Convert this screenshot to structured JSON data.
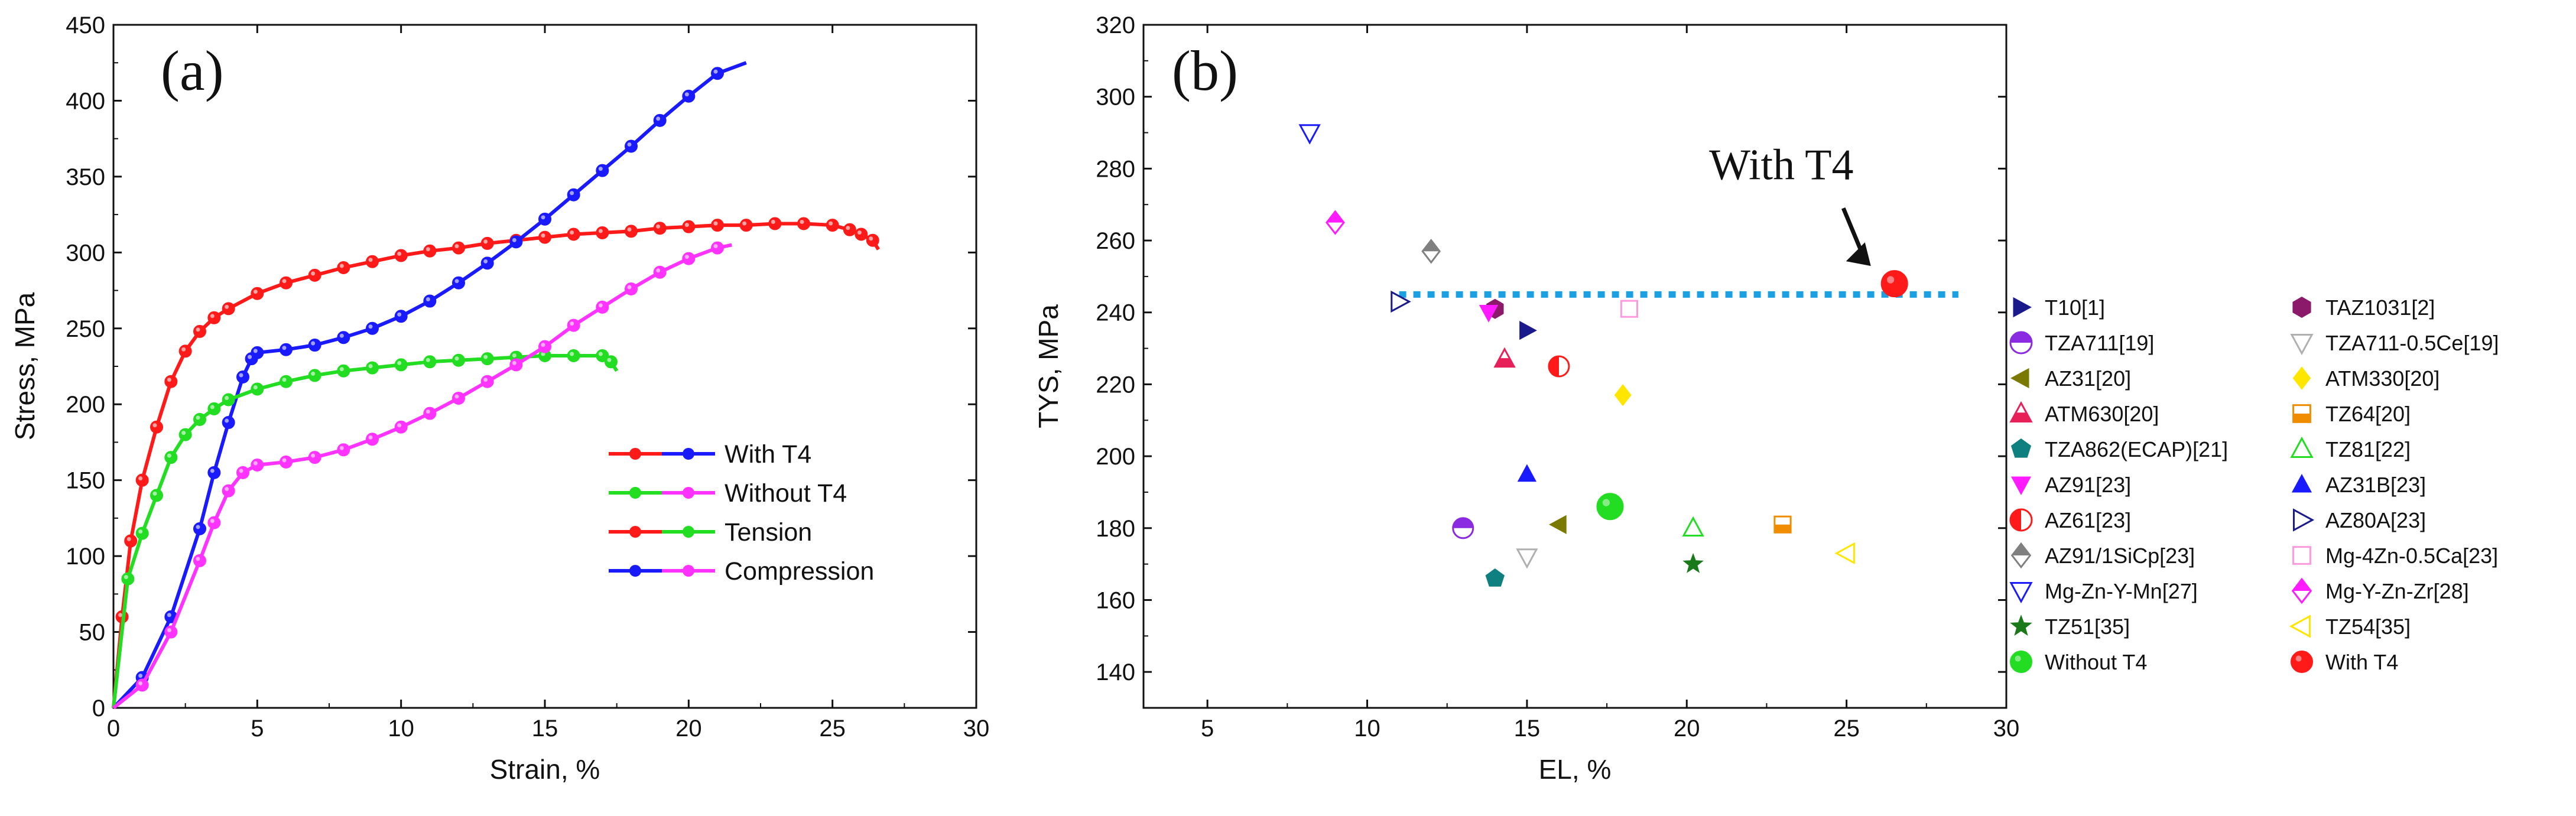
{
  "chart_data": [
    {
      "type": "line",
      "panel_label": "(a)",
      "xlabel": "Strain, %",
      "ylabel": "Stress, MPa",
      "xlim": [
        0,
        30
      ],
      "ylim": [
        0,
        450
      ],
      "xticks": [
        "0",
        "5",
        "10",
        "15",
        "20",
        "25",
        "30"
      ],
      "yticks": [
        "0",
        "50",
        "100",
        "150",
        "200",
        "250",
        "300",
        "350",
        "400",
        "450"
      ],
      "legend": [
        {
          "label": "With T4",
          "colors": [
            "#ff1a1a",
            "#1a1aff"
          ]
        },
        {
          "label": "Without T4",
          "colors": [
            "#22dd22",
            "#ff33ff"
          ]
        },
        {
          "label": "Tension",
          "colors": [
            "#ff1a1a",
            "#22dd22"
          ]
        },
        {
          "label": "Compression",
          "colors": [
            "#1a1aff",
            "#ff33ff"
          ]
        }
      ],
      "series": [
        {
          "name": "With T4 tension",
          "color": "#ff1a1a",
          "x": [
            0,
            0.3,
            0.6,
            1,
            1.5,
            2,
            2.5,
            3,
            3.5,
            4,
            5,
            6,
            7,
            8,
            9,
            10,
            11,
            12,
            13,
            14,
            15,
            16,
            17,
            18,
            19,
            20,
            21,
            22,
            23,
            24,
            25,
            25.6,
            26,
            26.4,
            26.6
          ],
          "y": [
            0,
            60,
            110,
            150,
            185,
            215,
            235,
            248,
            257,
            263,
            273,
            280,
            285,
            290,
            294,
            298,
            301,
            303,
            306,
            308,
            310,
            312,
            313,
            314,
            316,
            317,
            318,
            318,
            319,
            319,
            318,
            315,
            312,
            308,
            302
          ]
        },
        {
          "name": "With T4 compression",
          "color": "#1a1aff",
          "x": [
            0,
            1,
            2,
            3,
            3.5,
            4,
            4.5,
            4.8,
            5,
            6,
            7,
            8,
            9,
            10,
            11,
            12,
            13,
            14,
            15,
            16,
            17,
            18,
            19,
            20,
            21,
            22
          ],
          "y": [
            0,
            20,
            60,
            118,
            155,
            188,
            218,
            230,
            234,
            236,
            239,
            244,
            250,
            258,
            268,
            280,
            293,
            307,
            322,
            338,
            354,
            370,
            387,
            403,
            418,
            425
          ]
        },
        {
          "name": "Without T4 tension",
          "color": "#22dd22",
          "x": [
            0,
            0.5,
            1,
            1.5,
            2,
            2.5,
            3,
            3.5,
            4,
            5,
            6,
            7,
            8,
            9,
            10,
            11,
            12,
            13,
            14,
            15,
            16,
            17,
            17.3,
            17.5
          ],
          "y": [
            0,
            85,
            115,
            140,
            165,
            180,
            190,
            197,
            203,
            210,
            215,
            219,
            222,
            224,
            226,
            228,
            229,
            230,
            231,
            232,
            232,
            232,
            228,
            222
          ]
        },
        {
          "name": "Without T4 compression",
          "color": "#ff33ff",
          "x": [
            0,
            1,
            2,
            3,
            3.5,
            4,
            4.5,
            5,
            6,
            7,
            8,
            9,
            10,
            11,
            12,
            13,
            14,
            15,
            16,
            17,
            18,
            19,
            20,
            21,
            21.5
          ],
          "y": [
            0,
            15,
            50,
            97,
            122,
            143,
            155,
            160,
            162,
            165,
            170,
            177,
            185,
            194,
            204,
            215,
            226,
            238,
            252,
            264,
            276,
            287,
            296,
            303,
            305
          ]
        }
      ]
    },
    {
      "type": "scatter",
      "panel_label": "(b)",
      "xlabel": "EL, %",
      "ylabel": "TYS, MPa",
      "xlim": [
        3,
        30
      ],
      "ylim": [
        130,
        320
      ],
      "xticks": [
        "5",
        "10",
        "15",
        "20",
        "25",
        "30"
      ],
      "yticks": [
        "140",
        "160",
        "180",
        "200",
        "220",
        "240",
        "260",
        "280",
        "300",
        "320"
      ],
      "reference_line": {
        "y": 245,
        "x_range": [
          11,
          28.5
        ],
        "color": "#1ba1e2"
      },
      "annotation": {
        "text": "With T4",
        "arrow_to": [
          26.5,
          247
        ]
      },
      "points": [
        {
          "label": "T10[1]",
          "x": 15,
          "y": 235,
          "shape": "tri-right",
          "fill": "#1a1a8c"
        },
        {
          "label": "TAZ1031[2]",
          "x": 14,
          "y": 241,
          "shape": "hexagon",
          "fill": "#8b1a6b"
        },
        {
          "label": "TZA711[19]",
          "x": 13,
          "y": 180,
          "shape": "circle-half-top",
          "fill": "#8a2be2"
        },
        {
          "label": "TZA711-0.5Ce[19]",
          "x": 15,
          "y": 172,
          "shape": "tri-down-open",
          "fill": "#b0b0b0"
        },
        {
          "label": "AZ31[20]",
          "x": 16,
          "y": 181,
          "shape": "tri-left",
          "fill": "#7a7a00"
        },
        {
          "label": "ATM330[20]",
          "x": 18,
          "y": 217,
          "shape": "diamond",
          "fill": "#ffe600"
        },
        {
          "label": "ATM630[20]",
          "x": 14.3,
          "y": 227,
          "shape": "tri-up-half",
          "fill": "#e8205a"
        },
        {
          "label": "TZ64[20]",
          "x": 23,
          "y": 181,
          "shape": "square-half",
          "fill": "#f08c00"
        },
        {
          "label": "TZA862(ECAP)[21]",
          "x": 14,
          "y": 166,
          "shape": "pentagon",
          "fill": "#0f8080"
        },
        {
          "label": "TZ81[22]",
          "x": 20.2,
          "y": 180,
          "shape": "tri-up-open",
          "fill": "#22dd22"
        },
        {
          "label": "AZ91[23]",
          "x": 13.8,
          "y": 240,
          "shape": "tri-down",
          "fill": "#ff1aff"
        },
        {
          "label": "AZ31B[23]",
          "x": 15,
          "y": 195,
          "shape": "tri-up",
          "fill": "#1a1aff"
        },
        {
          "label": "AZ61[23]",
          "x": 16,
          "y": 225,
          "shape": "circle-half-left",
          "fill": "#ff1a1a"
        },
        {
          "label": "AZ80A[23]",
          "x": 11,
          "y": 243,
          "shape": "tri-right-open",
          "fill": "#1a1a8c"
        },
        {
          "label": "AZ91/1SiCp[23]",
          "x": 12,
          "y": 257,
          "shape": "diamond-half",
          "fill": "#808080"
        },
        {
          "label": "Mg-4Zn-0.5Ca[23]",
          "x": 18.2,
          "y": 241,
          "shape": "square-open",
          "fill": "#ff99dd"
        },
        {
          "label": "Mg-Zn-Y-Mn[27]",
          "x": 8.2,
          "y": 290,
          "shape": "tri-down-open",
          "fill": "#1a1aff"
        },
        {
          "label": "Mg-Y-Zn-Zr[28]",
          "x": 9,
          "y": 265,
          "shape": "diamond-half",
          "fill": "#ff1aff"
        },
        {
          "label": "TZ51[35]",
          "x": 20.2,
          "y": 170,
          "shape": "star",
          "fill": "#1a7a1a"
        },
        {
          "label": "TZ54[35]",
          "x": 25,
          "y": 173,
          "shape": "tri-left-open",
          "fill": "#ffe600"
        },
        {
          "label": "Without T4",
          "x": 17.6,
          "y": 186,
          "shape": "circle",
          "fill": "#22dd22"
        },
        {
          "label": "With T4",
          "x": 26.5,
          "y": 248,
          "shape": "circle",
          "fill": "#ff1a1a"
        }
      ]
    }
  ]
}
